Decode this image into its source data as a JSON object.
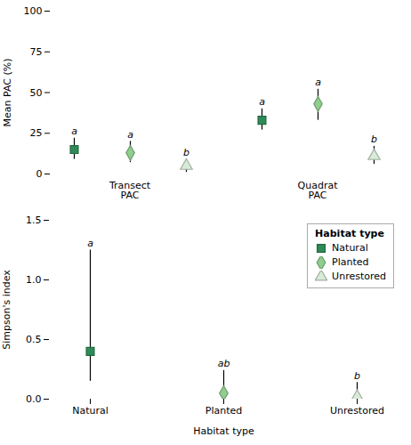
{
  "chart_data": [
    {
      "type": "errorbar",
      "ylabel": "Mean PAC (%)",
      "categories": [
        "Transect\nPAC",
        "Quadrat\nPAC"
      ],
      "ylim": [
        0,
        100
      ],
      "yticks": [
        0,
        25,
        50,
        75,
        100
      ],
      "series": [
        {
          "name": "Natural",
          "color": "#2e8b57",
          "marker": "square",
          "values": [
            15,
            33
          ],
          "ci_lo": [
            9,
            27
          ],
          "ci_hi": [
            22,
            40
          ],
          "letters": [
            "a",
            "a"
          ]
        },
        {
          "name": "Planted",
          "color": "#8fce8f",
          "marker": "diamond",
          "values": [
            13,
            43
          ],
          "ci_lo": [
            7,
            33
          ],
          "ci_hi": [
            20,
            52
          ],
          "letters": [
            "a",
            "a"
          ]
        },
        {
          "name": "Unrestored",
          "color": "#d8ead8",
          "marker": "triangle",
          "values": [
            5,
            11
          ],
          "ci_lo": [
            1,
            6
          ],
          "ci_hi": [
            9,
            17
          ],
          "letters": [
            "b",
            "b"
          ]
        }
      ]
    },
    {
      "type": "errorbar",
      "xlabel": "Habitat type",
      "ylabel": "Simpson's index",
      "categories": [
        "Natural",
        "Planted",
        "Unrestored"
      ],
      "values": [
        0.4,
        0.05,
        0.02
      ],
      "ci_lo": [
        0.15,
        0.005,
        0.001
      ],
      "ci_hi": [
        1.25,
        0.24,
        0.14
      ],
      "letters": [
        "a",
        "ab",
        "b"
      ],
      "colors": [
        "#2e8b57",
        "#8fce8f",
        "#d8ead8"
      ],
      "markers": [
        "square",
        "diamond",
        "triangle"
      ],
      "ylim": [
        0,
        1.5
      ],
      "yticks": [
        {
          "value": 0,
          "label": "0.0"
        },
        0.5,
        {
          "value": 1,
          "label": "1.0"
        },
        1.5
      ],
      "legend": "top-right",
      "legend_title": "Habitat type"
    }
  ]
}
